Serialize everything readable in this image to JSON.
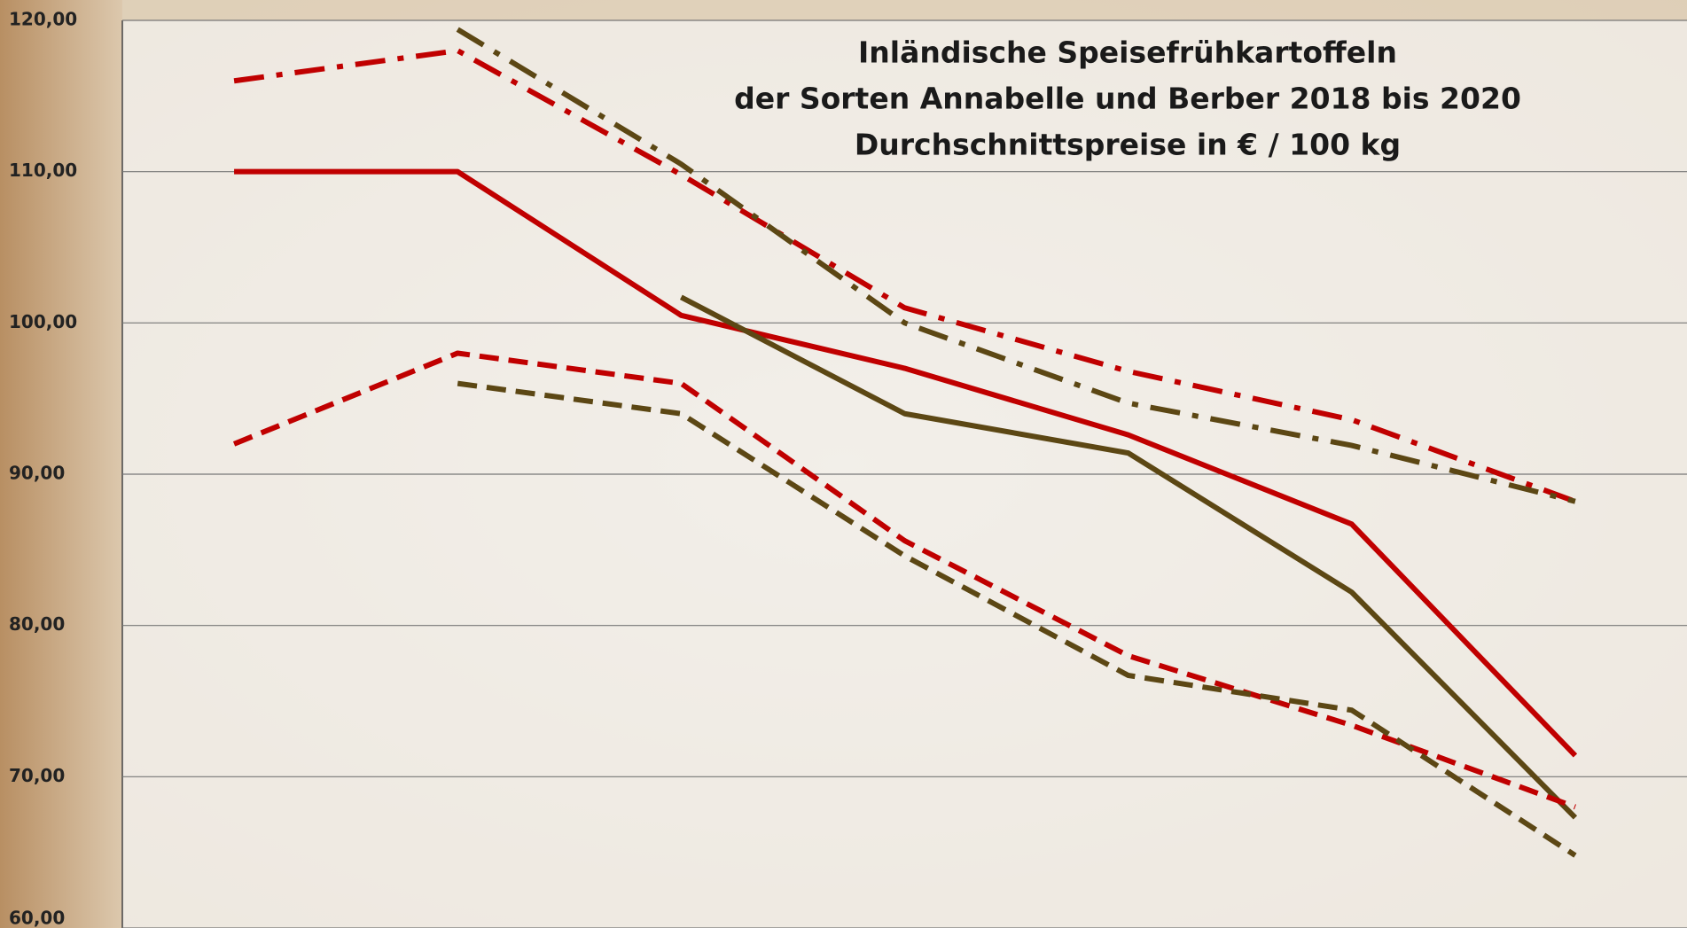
{
  "chart_data": {
    "type": "line",
    "title": [
      "Inländische Speisefrühkartoffeln",
      "der Sorten Annabelle und Berber 2018 bis 2020",
      "Durchschnittspreise in € / 100 kg"
    ],
    "categories": [
      null,
      null,
      null,
      null,
      null,
      null,
      null
    ],
    "ylim": [
      60,
      120
    ],
    "yticks": [
      {
        "value": 60,
        "label": "60,00"
      },
      {
        "value": 70,
        "label": "70,00"
      },
      {
        "value": 80,
        "label": "80,00"
      },
      {
        "value": 90,
        "label": "90,00"
      },
      {
        "value": 100,
        "label": "100,00"
      },
      {
        "value": 110,
        "label": "110,00"
      },
      {
        "value": 120,
        "label": "120,00"
      }
    ],
    "grid": true,
    "series": [
      {
        "color": "#c00000",
        "dash": "solid",
        "values": [
          110,
          110,
          100.5,
          97,
          92.6,
          86.7,
          71.4
        ]
      },
      {
        "color": "#5c4714",
        "dash": "solid",
        "values": [
          null,
          null,
          101.7,
          94,
          91.4,
          82.2,
          67.3
        ]
      },
      {
        "color": "#c00000",
        "dash": "dashdot",
        "values": [
          116,
          118,
          109.8,
          101,
          96.8,
          93.6,
          88.2
        ]
      },
      {
        "color": "#5c4714",
        "dash": "dashdot",
        "values": [
          null,
          119.4,
          110.5,
          100,
          94.7,
          91.9,
          88.2
        ]
      },
      {
        "color": "#c00000",
        "dash": "dashed",
        "values": [
          92,
          98,
          96,
          85.6,
          78,
          73.4,
          68
        ]
      },
      {
        "color": "#5c4714",
        "dash": "dashed",
        "values": [
          null,
          96,
          94,
          84.6,
          76.7,
          74.4,
          64.8
        ]
      }
    ]
  }
}
